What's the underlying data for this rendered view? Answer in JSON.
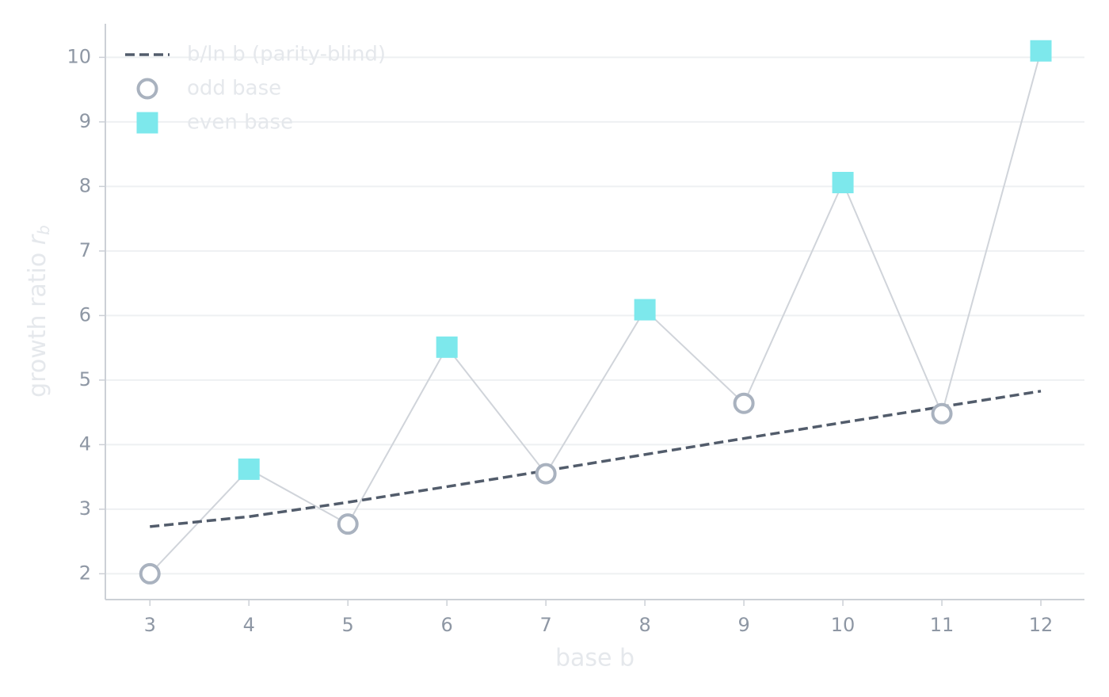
{
  "chart_data": {
    "type": "line",
    "xlabel": "base  b",
    "ylabel": [
      "growth ratio  ",
      "r",
      "b"
    ],
    "x": [
      3,
      4,
      5,
      6,
      7,
      8,
      9,
      10,
      11,
      12
    ],
    "xlim": [
      2.55,
      12.44
    ],
    "xticks": [
      3,
      4,
      5,
      6,
      7,
      8,
      9,
      10,
      11,
      12
    ],
    "ylim": [
      1.6,
      10.52
    ],
    "yticks": [
      2,
      3,
      4,
      5,
      6,
      7,
      8,
      9,
      10
    ],
    "grid": true,
    "legend": "upper left",
    "connector_color": "#d0d4da",
    "series": [
      {
        "name": "b/ln b (parity-blind)",
        "color": "#525c6b",
        "style": "dashed",
        "values": [
          2.73,
          2.885,
          3.107,
          3.349,
          3.597,
          3.847,
          4.096,
          4.343,
          4.587,
          4.829
        ]
      },
      {
        "name": "odd base",
        "color": "#a9b2bf",
        "marker": "circle",
        "values": [
          2.0,
          null,
          2.77,
          null,
          3.55,
          null,
          4.64,
          null,
          4.48,
          null
        ]
      },
      {
        "name": "even base",
        "color": "#7de8ec",
        "marker": "square",
        "values": [
          null,
          3.62,
          null,
          5.51,
          null,
          6.09,
          null,
          8.06,
          null,
          10.1
        ]
      }
    ]
  }
}
